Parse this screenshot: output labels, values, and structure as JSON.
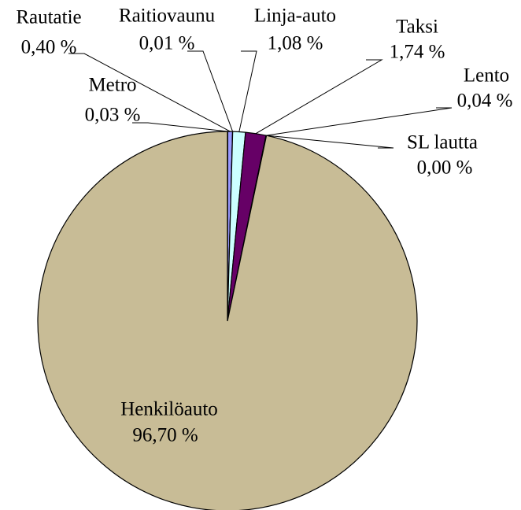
{
  "chart_data": {
    "type": "pie",
    "categories": [
      "Metro",
      "Rautatie",
      "Raitiovaunu",
      "Linja-auto",
      "Taksi",
      "Lento",
      "SL lautta",
      "Henkilöauto"
    ],
    "values": [
      0.03,
      0.4,
      0.01,
      1.08,
      1.74,
      0.04,
      0.0,
      96.7
    ],
    "value_labels": [
      "0,03 %",
      "0,40 %",
      "0,01 %",
      "1,08 %",
      "1,74 %",
      "0,04 %",
      "0,00 %",
      "96,70 %"
    ],
    "colors": [
      "#993366",
      "#9999ff",
      "#ffffcc",
      "#ccffff",
      "#660066",
      "#ff8080",
      "#0066cc",
      "#c8bc96"
    ]
  }
}
